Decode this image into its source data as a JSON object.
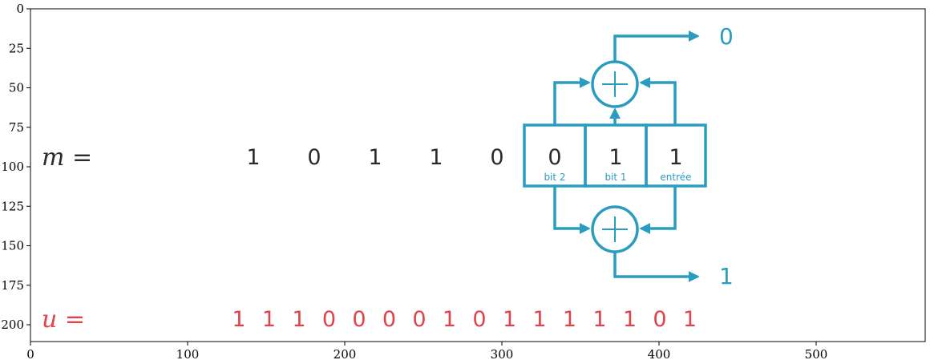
{
  "axes": {
    "x_ticks": [
      "0",
      "100",
      "200",
      "300",
      "400",
      "500"
    ],
    "y_ticks": [
      "0",
      "25",
      "50",
      "75",
      "100",
      "125",
      "150",
      "175",
      "200"
    ]
  },
  "labels": {
    "m_label": "m =",
    "u_label": "u ="
  },
  "message_bits": [
    "1",
    "0",
    "1",
    "1",
    "0"
  ],
  "register": [
    {
      "value": "0",
      "label": "bit 2"
    },
    {
      "value": "1",
      "label": "bit 1"
    },
    {
      "value": "1",
      "label": "entrée"
    }
  ],
  "outputs": {
    "top": "0",
    "bottom": "1"
  },
  "encoded_bits": [
    "1",
    "1",
    "1",
    "0",
    "0",
    "0",
    "0",
    "1",
    "0",
    "1",
    "1",
    "1",
    "1",
    "1",
    "0",
    "1"
  ],
  "colors": {
    "accent": "#2a9cbf",
    "encoded": "#e0434a",
    "text": "#2b2b2b"
  }
}
